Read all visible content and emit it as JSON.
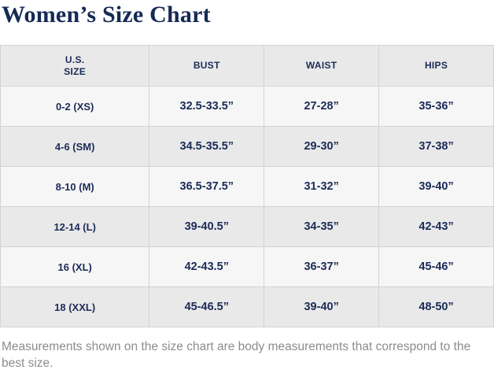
{
  "title": "Women’s Size Chart",
  "colors": {
    "title_navy": "#152a54",
    "table_text_navy": "#1b2b57",
    "header_bg": "#e9e9e9",
    "row_light_bg": "#f6f6f6",
    "row_dark_bg": "#e9e9e9",
    "border": "#d3d3d3",
    "footnote_gray": "#8c8c8c"
  },
  "table": {
    "headers": [
      "U.S.\nSIZE",
      "BUST",
      "WAIST",
      "HIPS"
    ],
    "rows": [
      {
        "size": "0-2 (XS)",
        "bust": "32.5-33.5”",
        "waist": "27-28”",
        "hips": "35-36”"
      },
      {
        "size": "4-6 (SM)",
        "bust": "34.5-35.5”",
        "waist": "29-30”",
        "hips": "37-38”"
      },
      {
        "size": "8-10 (M)",
        "bust": "36.5-37.5”",
        "waist": "31-32”",
        "hips": "39-40”"
      },
      {
        "size": "12-14 (L)",
        "bust": "39-40.5”",
        "waist": "34-35”",
        "hips": "42-43”"
      },
      {
        "size": "16 (XL)",
        "bust": "42-43.5”",
        "waist": "36-37”",
        "hips": "45-46”"
      },
      {
        "size": "18 (XXL)",
        "bust": "45-46.5”",
        "waist": "39-40”",
        "hips": "48-50”"
      }
    ]
  },
  "footnote": "Measurements shown on the size chart are body measurements that correspond to the best size."
}
